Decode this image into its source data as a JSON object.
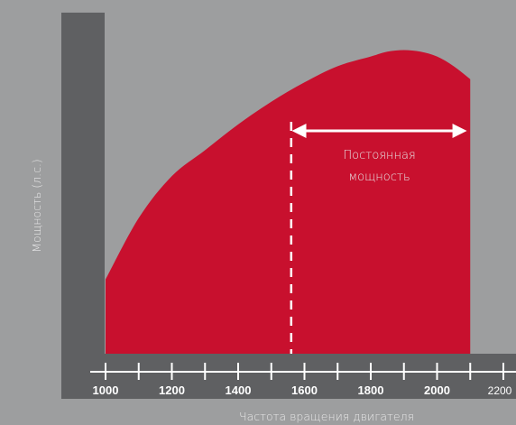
{
  "chart_data": {
    "type": "area",
    "ylabel": "Мощность (л.с.)",
    "xlabel": "Частота вращения двигателя",
    "xlim": [
      1000,
      2200
    ],
    "x_ticks": [
      1000,
      1100,
      1200,
      1300,
      1400,
      1500,
      1600,
      1700,
      1800,
      1900,
      2000,
      2100,
      2200
    ],
    "x_tick_labels": [
      {
        "x": 1000,
        "label": "1000"
      },
      {
        "x": 1200,
        "label": "1200"
      },
      {
        "x": 1400,
        "label": "1400"
      },
      {
        "x": 1600,
        "label": "1600"
      },
      {
        "x": 1800,
        "label": "1800"
      },
      {
        "x": 2000,
        "label": "2000"
      },
      {
        "x": 2200,
        "label": "2200"
      }
    ],
    "series": [
      {
        "color": "#c8102e",
        "x": [
          1000,
          1100,
          1200,
          1300,
          1400,
          1500,
          1600,
          1700,
          1800,
          1850,
          1900,
          1950,
          2000,
          2050,
          2100
        ],
        "values": [
          23,
          42,
          55,
          63,
          71,
          78,
          84,
          89,
          92,
          93.5,
          94,
          93.5,
          92,
          89,
          85
        ]
      }
    ],
    "marker_x": 1560,
    "annotation": {
      "line1": "Постоянная",
      "line2": "мощность",
      "x_start": 1600,
      "x_end": 2090
    }
  }
}
